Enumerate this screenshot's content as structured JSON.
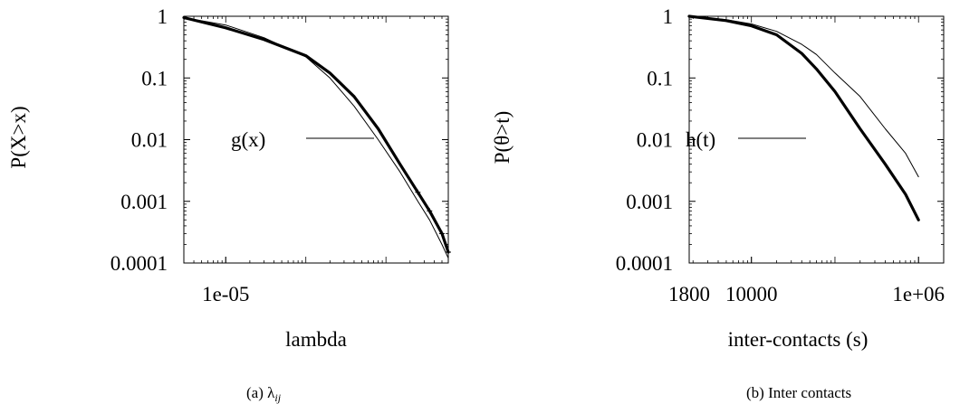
{
  "figure": {
    "captions": [
      "(a) λ",
      "(b) Inter contacts"
    ],
    "caption_a_sub": "ij"
  },
  "chart_data": [
    {
      "type": "line",
      "panel_caption": "(a) λij",
      "xlabel": "lambda",
      "ylabel": "P(X>x)",
      "x_scale": "log",
      "y_scale": "log",
      "xlim": [
        3e-06,
        0.006
      ],
      "ylim": [
        0.0001,
        1
      ],
      "x_tick_labels": [
        "1e-05"
      ],
      "x_tick_values": [
        1e-05
      ],
      "y_tick_labels": [
        "1",
        "0.1",
        "0.01",
        "0.001",
        "0.0001"
      ],
      "y_tick_values": [
        1,
        0.1,
        0.01,
        0.001,
        0.0001
      ],
      "legend": {
        "position": "center-left",
        "entries": [
          "g(x)"
        ]
      },
      "grid": false,
      "series": [
        {
          "role": "empirical",
          "style": "thick line with scattered markers in tail",
          "x": [
            3e-06,
            1e-05,
            3e-05,
            0.0001,
            0.0002,
            0.0004,
            0.0008,
            0.0015,
            0.0025,
            0.0035,
            0.005,
            0.006
          ],
          "y": [
            0.95,
            0.65,
            0.42,
            0.23,
            0.12,
            0.05,
            0.015,
            0.004,
            0.0014,
            0.0007,
            0.0003,
            0.00015
          ]
        },
        {
          "name": "g(x)",
          "style": "thin line",
          "x": [
            3e-06,
            1e-05,
            3e-05,
            0.0001,
            0.0002,
            0.0004,
            0.0008,
            0.0015,
            0.0025,
            0.0035,
            0.005,
            0.006
          ],
          "y": [
            0.95,
            0.72,
            0.45,
            0.22,
            0.1,
            0.035,
            0.01,
            0.003,
            0.001,
            0.0005,
            0.0002,
            0.00012
          ]
        }
      ]
    },
    {
      "type": "line",
      "panel_caption": "(b) Inter contacts",
      "xlabel": "inter-contacts (s)",
      "ylabel": "P(θ>t)",
      "x_scale": "log",
      "y_scale": "log",
      "xlim": [
        1800,
        2000000
      ],
      "ylim": [
        0.0001,
        1
      ],
      "x_tick_labels": [
        "1800",
        "10000",
        "1e+06"
      ],
      "x_tick_values": [
        1800,
        10000,
        1000000
      ],
      "y_tick_labels": [
        "1",
        "0.1",
        "0.01",
        "0.001",
        "0.0001"
      ],
      "y_tick_values": [
        1,
        0.1,
        0.01,
        0.001,
        0.0001
      ],
      "legend": {
        "position": "center-left",
        "entries": [
          "h(t)"
        ]
      },
      "grid": false,
      "series": [
        {
          "role": "empirical",
          "style": "thick line",
          "x": [
            1800,
            5000,
            10000,
            20000,
            40000,
            60000,
            100000,
            200000,
            400000,
            700000,
            1000000
          ],
          "y": [
            1.0,
            0.85,
            0.7,
            0.5,
            0.25,
            0.14,
            0.06,
            0.015,
            0.004,
            0.0013,
            0.0005
          ]
        },
        {
          "name": "h(t)",
          "style": "thin line",
          "x": [
            1800,
            5000,
            10000,
            20000,
            40000,
            60000,
            100000,
            200000,
            400000,
            700000,
            1000000
          ],
          "y": [
            1.0,
            0.88,
            0.75,
            0.57,
            0.35,
            0.24,
            0.12,
            0.05,
            0.015,
            0.006,
            0.0025
          ]
        }
      ]
    }
  ]
}
